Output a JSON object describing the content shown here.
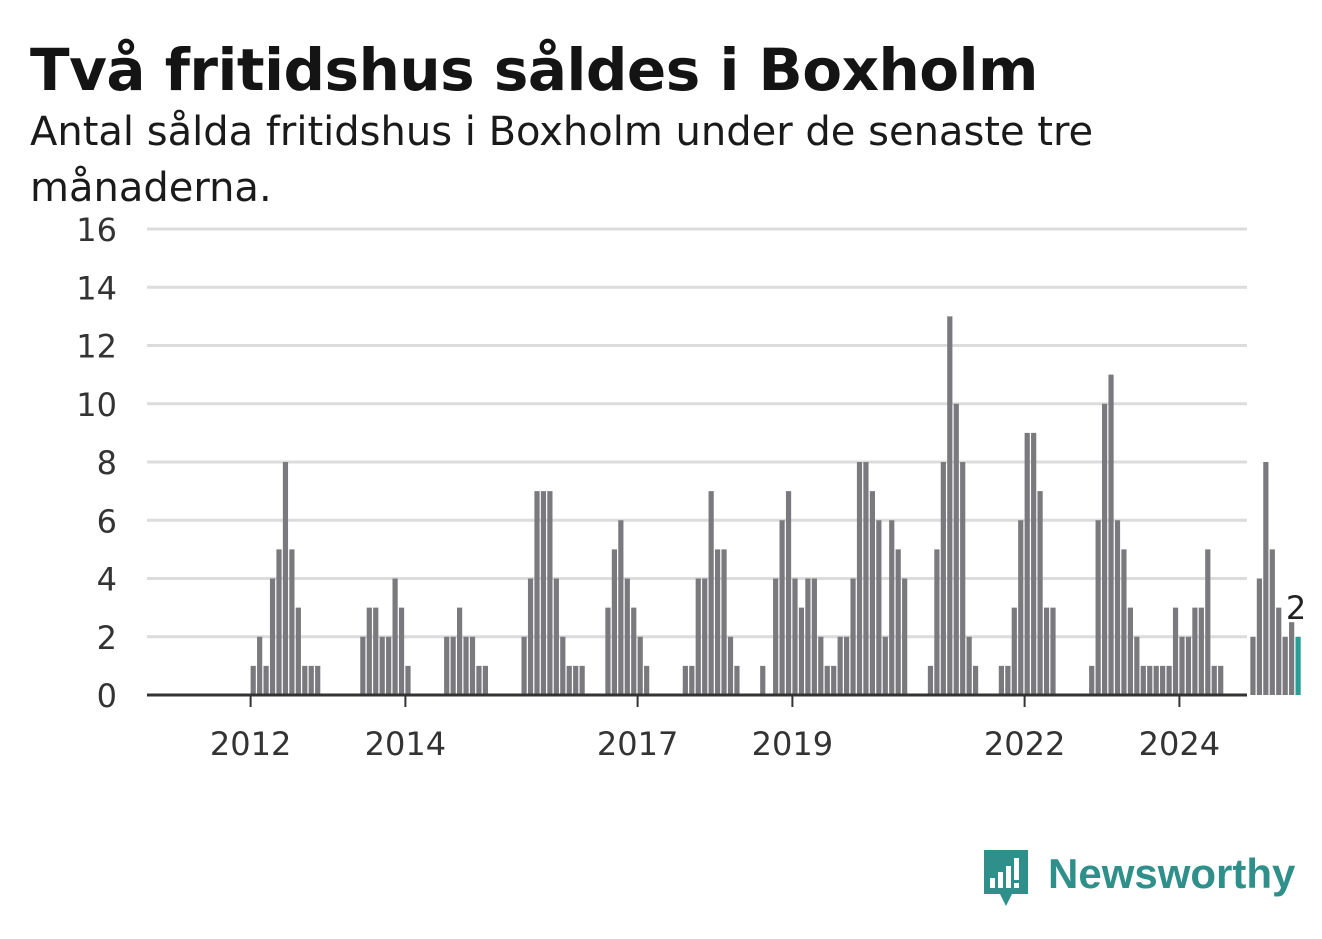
{
  "title": "Två fritidshus såldes i Boxholm",
  "subtitle": "Antal sålda fritidshus i Boxholm under de senaste tre månaderna.",
  "brand": {
    "name": "Newsworthy",
    "icon": "newsworthy-logo-icon",
    "color": "#2f8f8a"
  },
  "chart_data": {
    "type": "bar",
    "title": "Två fritidshus såldes i Boxholm",
    "subtitle": "Antal sålda fritidshus i Boxholm under de senaste tre månaderna.",
    "xlabel": "",
    "ylabel": "",
    "ylim": [
      0,
      16
    ],
    "yticks": [
      0,
      2,
      4,
      6,
      8,
      10,
      12,
      14,
      16
    ],
    "xticks": [
      2012,
      2014,
      2017,
      2019,
      2022,
      2024
    ],
    "x_start": 2011.3333,
    "x_step_years": 0.0833333,
    "grid": true,
    "colors": {
      "bars": "#7a797d",
      "highlight": "#2a9d96",
      "grid": "#dcdcdc",
      "axis": "#333333"
    },
    "last_value_label": "2",
    "values": [
      0,
      0,
      0,
      0,
      0,
      0,
      0,
      0,
      1,
      2,
      1,
      4,
      5,
      8,
      5,
      3,
      1,
      1,
      1,
      0,
      0,
      0,
      0,
      0,
      0,
      2,
      3,
      3,
      2,
      2,
      4,
      3,
      1,
      0,
      0,
      0,
      0,
      0,
      2,
      2,
      3,
      2,
      2,
      1,
      1,
      0,
      0,
      0,
      0,
      0,
      2,
      4,
      7,
      7,
      7,
      4,
      2,
      1,
      1,
      1,
      0,
      0,
      0,
      3,
      5,
      6,
      4,
      3,
      2,
      1,
      0,
      0,
      0,
      0,
      0,
      1,
      1,
      4,
      4,
      7,
      5,
      5,
      2,
      1,
      0,
      0,
      0,
      1,
      0,
      4,
      6,
      7,
      4,
      3,
      4,
      4,
      2,
      1,
      1,
      2,
      2,
      4,
      8,
      8,
      7,
      6,
      2,
      6,
      5,
      4,
      0,
      0,
      0,
      1,
      5,
      8,
      13,
      10,
      8,
      2,
      1,
      0,
      0,
      0,
      1,
      1,
      3,
      6,
      9,
      9,
      7,
      3,
      3,
      0,
      0,
      0,
      0,
      0,
      1,
      6,
      10,
      11,
      6,
      5,
      3,
      2,
      1,
      1,
      1,
      1,
      1,
      3,
      2,
      2,
      3,
      3,
      5,
      1,
      1,
      0,
      0,
      0,
      0,
      2,
      4,
      8,
      5,
      3,
      2,
      2.5,
      2
    ]
  }
}
